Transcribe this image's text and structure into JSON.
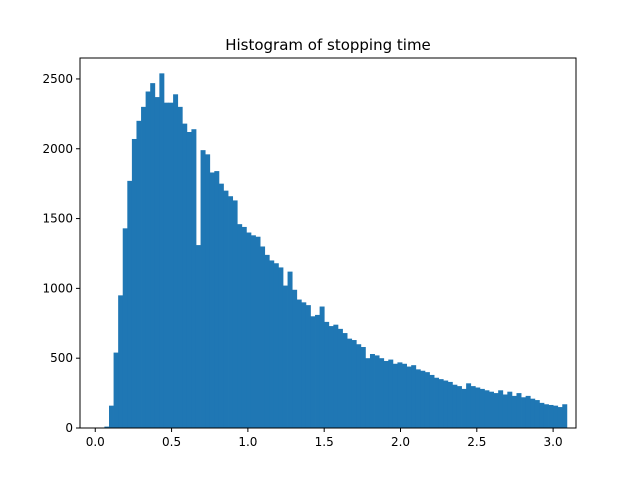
{
  "chart_data": {
    "type": "bar",
    "title": "Histogram of stopping time",
    "xlabel": "",
    "ylabel": "",
    "xlim": [
      -0.1,
      3.15
    ],
    "ylim": [
      0,
      2650
    ],
    "grid": false,
    "legend": "none",
    "bar_color": "#1f77b4",
    "bin_start": 0.0,
    "bin_width": 0.03,
    "x_ticks": [
      {
        "value": 0.0,
        "label": "0.0"
      },
      {
        "value": 0.5,
        "label": "0.5"
      },
      {
        "value": 1.0,
        "label": "1.0"
      },
      {
        "value": 1.5,
        "label": "1.5"
      },
      {
        "value": 2.0,
        "label": "2.0"
      },
      {
        "value": 2.5,
        "label": "2.5"
      },
      {
        "value": 3.0,
        "label": "3.0"
      }
    ],
    "y_ticks": [
      {
        "value": 0,
        "label": "0"
      },
      {
        "value": 500,
        "label": "500"
      },
      {
        "value": 1000,
        "label": "1000"
      },
      {
        "value": 1500,
        "label": "1500"
      },
      {
        "value": 2000,
        "label": "2000"
      },
      {
        "value": 2500,
        "label": "2500"
      }
    ],
    "values": [
      0,
      0,
      10,
      160,
      540,
      950,
      1430,
      1770,
      2070,
      2200,
      2300,
      2410,
      2470,
      2370,
      2540,
      2330,
      2330,
      2390,
      2300,
      2180,
      2120,
      2140,
      1310,
      1990,
      1960,
      1830,
      1840,
      1750,
      1700,
      1660,
      1630,
      1460,
      1440,
      1400,
      1380,
      1370,
      1300,
      1240,
      1200,
      1180,
      1150,
      1020,
      1120,
      990,
      920,
      900,
      880,
      800,
      810,
      870,
      760,
      730,
      740,
      710,
      680,
      640,
      630,
      600,
      580,
      500,
      530,
      520,
      500,
      480,
      490,
      460,
      470,
      460,
      440,
      450,
      420,
      410,
      400,
      380,
      360,
      350,
      340,
      330,
      310,
      300,
      280,
      320,
      300,
      290,
      280,
      270,
      260,
      250,
      270,
      240,
      260,
      230,
      250,
      220,
      230,
      210,
      200,
      180,
      170,
      165,
      160,
      150,
      170
    ]
  }
}
